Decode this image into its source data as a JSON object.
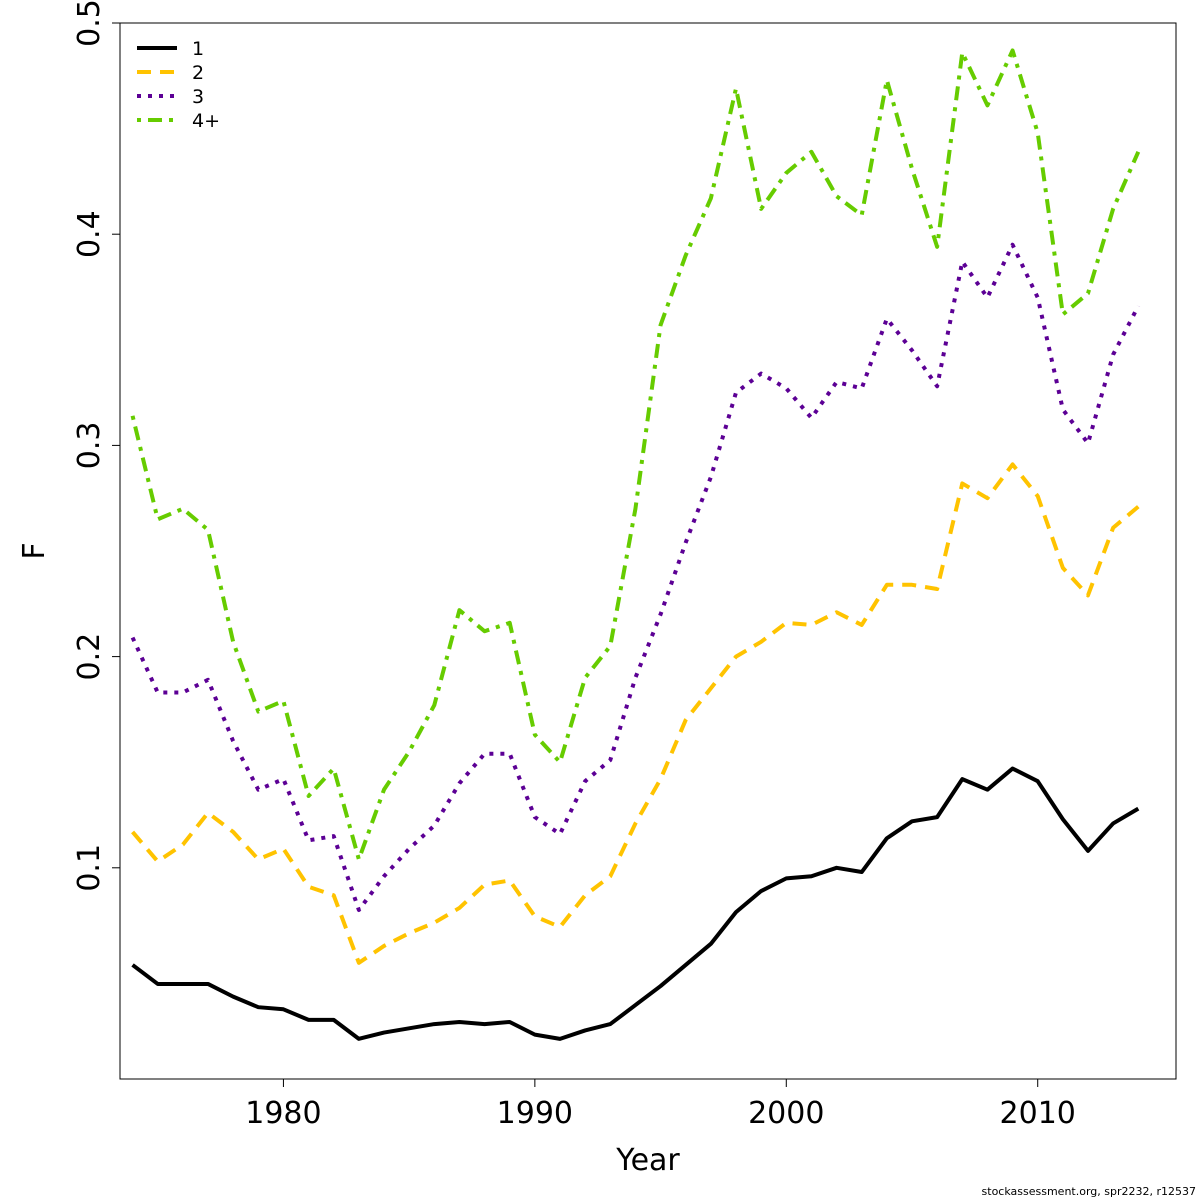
{
  "chart_data": {
    "type": "line",
    "title": "",
    "xlabel": "Year",
    "ylabel": "F",
    "xlim": [
      1973.5,
      2015.5
    ],
    "ylim": [
      0.0,
      0.5
    ],
    "x_ticks": [
      1980,
      1990,
      2000,
      2010
    ],
    "y_ticks": [
      0.1,
      0.2,
      0.3,
      0.4,
      0.5
    ],
    "x_tick_labels": [
      "1980",
      "1990",
      "2000",
      "2010"
    ],
    "y_tick_labels": [
      "0.1",
      "0.2",
      "0.3",
      "0.4",
      "0.5"
    ],
    "grid": false,
    "legend_position": "top-left",
    "x": [
      1974,
      1975,
      1976,
      1977,
      1978,
      1979,
      1980,
      1981,
      1982,
      1983,
      1984,
      1985,
      1986,
      1987,
      1988,
      1989,
      1990,
      1991,
      1992,
      1993,
      1994,
      1995,
      1996,
      1997,
      1998,
      1999,
      2000,
      2001,
      2002,
      2003,
      2004,
      2005,
      2006,
      2007,
      2008,
      2009,
      2010,
      2011,
      2012,
      2013,
      2014
    ],
    "series": [
      {
        "name": "1",
        "color": "#000000",
        "dash": "solid",
        "values": [
          0.054,
          0.045,
          0.045,
          0.045,
          0.039,
          0.034,
          0.033,
          0.028,
          0.028,
          0.019,
          0.022,
          0.024,
          0.026,
          0.027,
          0.026,
          0.027,
          0.021,
          0.019,
          0.023,
          0.026,
          0.035,
          0.044,
          0.054,
          0.064,
          0.079,
          0.089,
          0.095,
          0.096,
          0.1,
          0.098,
          0.114,
          0.122,
          0.124,
          0.142,
          0.137,
          0.147,
          0.141,
          0.123,
          0.108,
          0.121,
          0.128
        ]
      },
      {
        "name": "2",
        "color": "#FFC300",
        "dash": "dashed",
        "values": [
          0.117,
          0.103,
          0.111,
          0.126,
          0.117,
          0.104,
          0.109,
          0.091,
          0.087,
          0.055,
          0.063,
          0.069,
          0.074,
          0.081,
          0.092,
          0.094,
          0.077,
          0.072,
          0.087,
          0.096,
          0.121,
          0.142,
          0.17,
          0.185,
          0.2,
          0.207,
          0.216,
          0.215,
          0.221,
          0.215,
          0.234,
          0.234,
          0.232,
          0.282,
          0.275,
          0.291,
          0.276,
          0.242,
          0.229,
          0.261,
          0.271
        ]
      },
      {
        "name": "3",
        "color": "#5C0095",
        "dash": "dotted",
        "values": [
          0.209,
          0.183,
          0.183,
          0.189,
          0.16,
          0.137,
          0.142,
          0.113,
          0.115,
          0.08,
          0.096,
          0.109,
          0.12,
          0.14,
          0.154,
          0.154,
          0.124,
          0.116,
          0.141,
          0.151,
          0.19,
          0.22,
          0.254,
          0.285,
          0.325,
          0.334,
          0.327,
          0.313,
          0.33,
          0.327,
          0.36,
          0.345,
          0.328,
          0.387,
          0.37,
          0.395,
          0.37,
          0.317,
          0.301,
          0.343,
          0.366
        ]
      },
      {
        "name": "4+",
        "color": "#66CC00",
        "dash": "dotdash",
        "values": [
          0.314,
          0.265,
          0.27,
          0.26,
          0.207,
          0.174,
          0.179,
          0.134,
          0.147,
          0.104,
          0.137,
          0.155,
          0.177,
          0.222,
          0.212,
          0.216,
          0.163,
          0.15,
          0.19,
          0.205,
          0.27,
          0.357,
          0.39,
          0.417,
          0.469,
          0.412,
          0.429,
          0.439,
          0.418,
          0.409,
          0.473,
          0.431,
          0.394,
          0.486,
          0.461,
          0.487,
          0.448,
          0.362,
          0.372,
          0.412,
          0.439
        ]
      }
    ]
  },
  "footer": {
    "credit": "stockassessment.org, spr2232, r12537"
  }
}
